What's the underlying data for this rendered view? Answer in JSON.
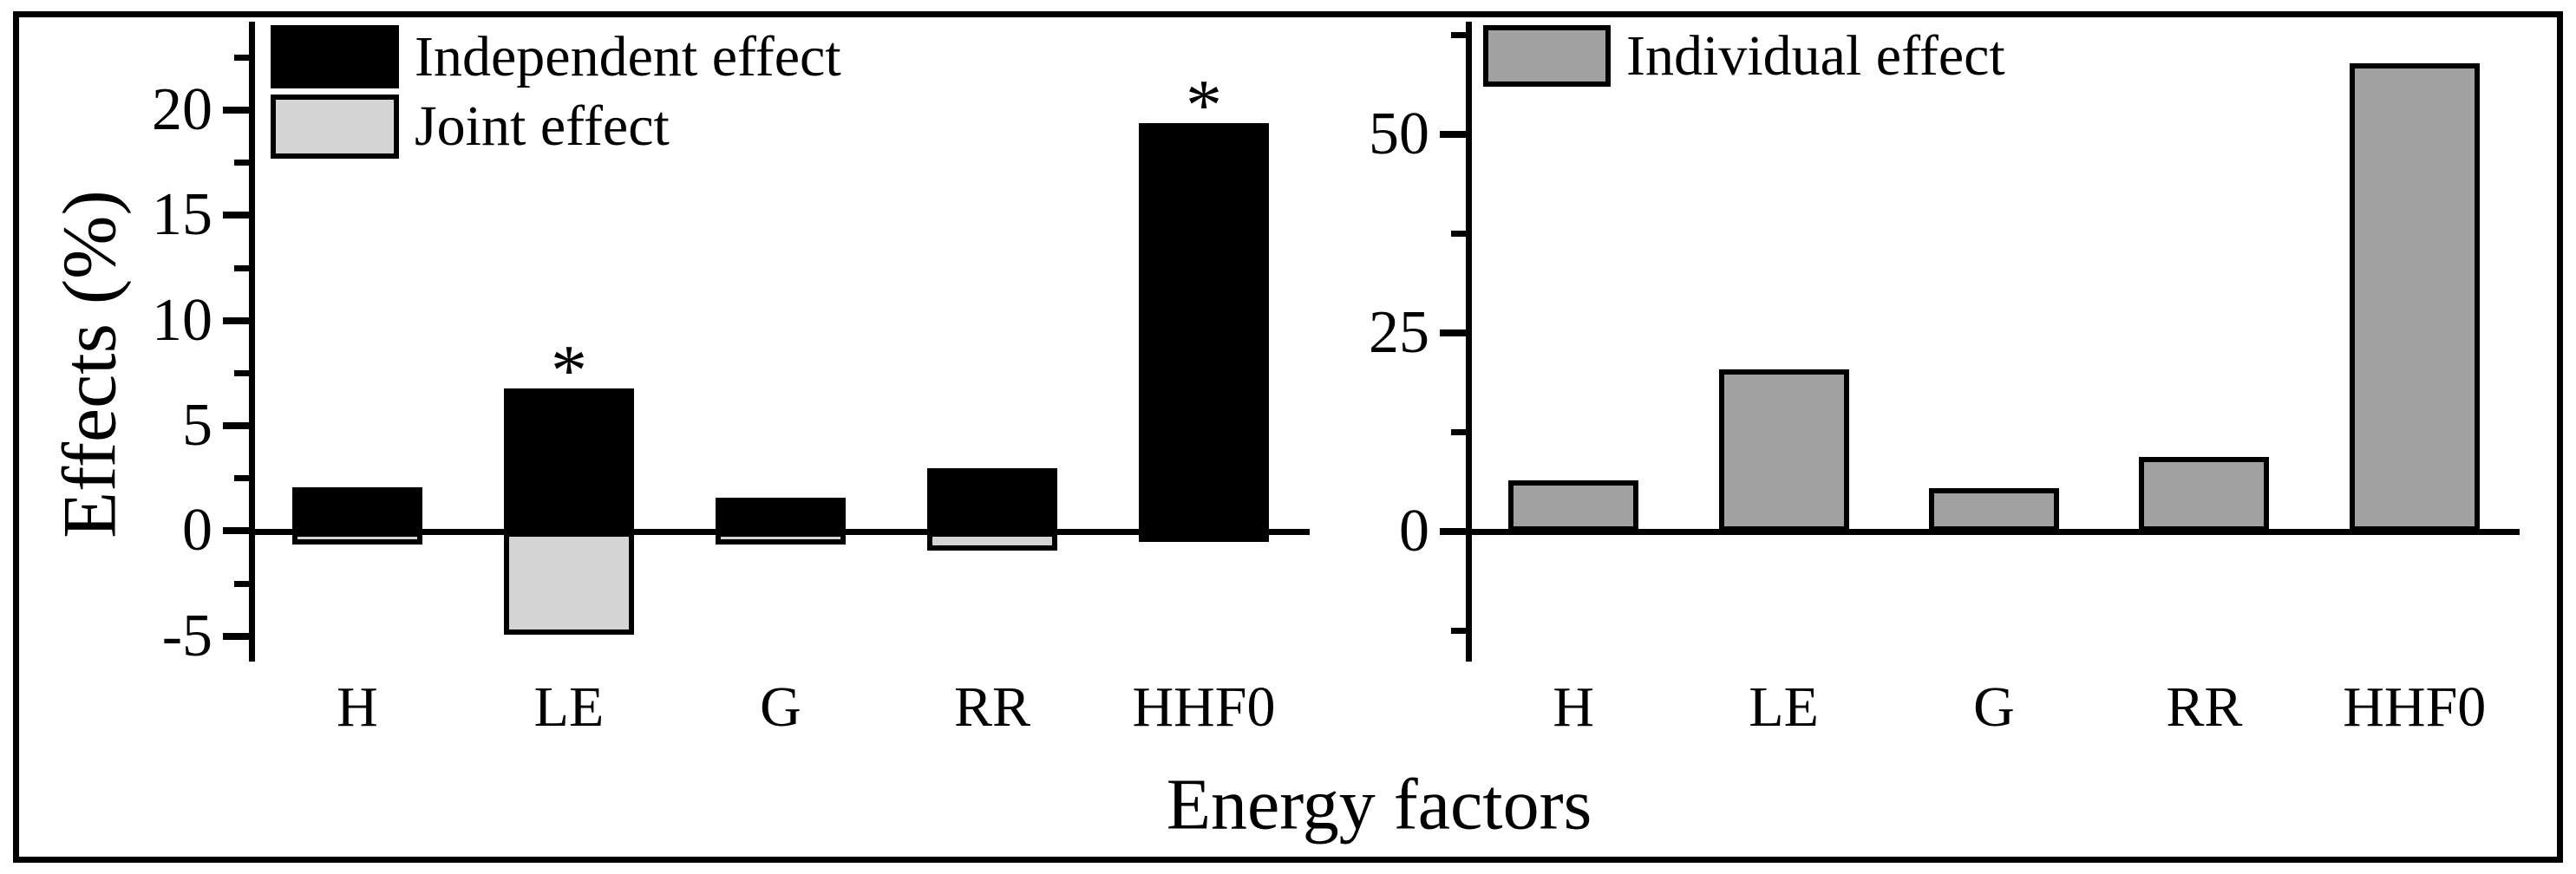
{
  "figure": {
    "xlabel": "Energy factors",
    "background_color": "#ffffff",
    "frame_color": "#000000"
  },
  "chart_data": [
    {
      "panel": "left",
      "type": "bar",
      "title": "",
      "ylabel": "Effects (%)",
      "xlabel": "Energy factors",
      "categories": [
        "H",
        "LE",
        "G",
        "RR",
        "HHF0"
      ],
      "series": [
        {
          "name": "Independent effect",
          "color": "#000000",
          "values": [
            2.1,
            6.8,
            1.6,
            3.0,
            19.4
          ],
          "significant": [
            false,
            true,
            false,
            false,
            true
          ]
        },
        {
          "name": "Joint effect",
          "color": "#d4d4d4",
          "values": [
            -0.6,
            -4.9,
            -0.6,
            -0.9,
            -0.5
          ]
        }
      ],
      "significance_marker": "*",
      "ylim": [
        -6.2,
        24.2
      ],
      "yticks_major": [
        -5,
        0,
        5,
        10,
        15,
        20
      ],
      "yticks_minor": [
        -2.5,
        2.5,
        7.5,
        12.5,
        17.5,
        22.5
      ],
      "grid": false,
      "legend_position": "top-left"
    },
    {
      "panel": "right",
      "type": "bar",
      "title": "",
      "ylabel": "",
      "xlabel": "Energy factors",
      "categories": [
        "H",
        "LE",
        "G",
        "RR",
        "HHF0"
      ],
      "series": [
        {
          "name": "Individual effect",
          "color": "#a1a1a1",
          "values": [
            6.4,
            20.4,
            5.5,
            9.4,
            59.0
          ]
        }
      ],
      "significance_marker": "*",
      "ylim": [
        -16.4,
        64.2
      ],
      "yticks_major": [
        0,
        25,
        50
      ],
      "yticks_minor": [
        -12.5,
        12.5,
        37.5,
        62.5
      ],
      "grid": false,
      "legend_position": "top-left"
    }
  ]
}
